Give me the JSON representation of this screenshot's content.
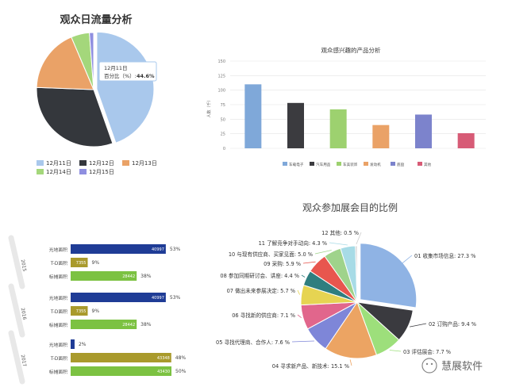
{
  "chart_data": [
    {
      "type": "pie",
      "title": "观众日流量分析",
      "categories": [
        "12月11日",
        "12月12日",
        "12月13日",
        "12月14日",
        "12月15日"
      ],
      "values": [
        44.6,
        31.0,
        18.0,
        5.2,
        1.2
      ],
      "colors": [
        "#a9c8ec",
        "#34373c",
        "#eaa267",
        "#a4d77b",
        "#8f8fe0"
      ],
      "tooltip": {
        "date": "12月11日",
        "label": "百分比（%）:",
        "value": "44.6%"
      },
      "legend": "bottom"
    },
    {
      "type": "bar",
      "title": "观众感兴趣的产品分析",
      "categories": [
        "车载电子",
        "汽车用品",
        "车美装饰",
        "发动机",
        "底盘",
        "其他"
      ],
      "values": [
        110,
        78,
        67,
        40,
        58,
        26
      ],
      "colors": [
        "#7fa8d9",
        "#3b3b3f",
        "#9dd16f",
        "#eaa267",
        "#7c83cc",
        "#d75b76"
      ],
      "ylabel": "人数（千）",
      "ylim": [
        0,
        150
      ],
      "yticks": [
        "0",
        "25",
        "50",
        "75",
        "100",
        "125",
        "150"
      ],
      "legend": "bottom"
    },
    {
      "type": "bar",
      "orientation": "horizontal",
      "groups": [
        {
          "year": "2015",
          "rows": [
            {
              "label": "光地面积",
              "value": 40997,
              "value_text": "40997",
              "pct_text": "53%",
              "color": "#1f3c96"
            },
            {
              "label": "T-D面积",
              "value": 7355,
              "value_text": "7355",
              "pct_text": "9%",
              "color": "#a99a2c"
            },
            {
              "label": "标摊面积",
              "value": 28442,
              "value_text": "28442",
              "pct_text": "38%",
              "color": "#7cc242"
            }
          ]
        },
        {
          "year": "2016",
          "rows": [
            {
              "label": "光地面积",
              "value": 40997,
              "value_text": "40997",
              "pct_text": "53%",
              "color": "#1f3c96"
            },
            {
              "label": "T-D面积",
              "value": 7355,
              "value_text": "7355",
              "pct_text": "9%",
              "color": "#a99a2c"
            },
            {
              "label": "标摊面积",
              "value": 28442,
              "value_text": "28442",
              "pct_text": "38%",
              "color": "#7cc242"
            }
          ]
        },
        {
          "year": "2017",
          "rows": [
            {
              "label": "光地面积",
              "value": 1700,
              "value_text": "",
              "pct_text": "2%",
              "color": "#1f3c96"
            },
            {
              "label": "T-D面积",
              "value": 43348,
              "value_text": "43348",
              "pct_text": "48%",
              "color": "#a99a2c"
            },
            {
              "label": "标摊面积",
              "value": 43430,
              "value_text": "43430",
              "pct_text": "50%",
              "color": "#7cc242"
            }
          ]
        }
      ]
    },
    {
      "type": "pie",
      "title": "观众参加展会目的比例",
      "slices": [
        {
          "label": "01 收集市场信息: 27.3 %",
          "value": 27.3,
          "color": "#8fb3e4"
        },
        {
          "label": "02 订购产品: 9.4 %",
          "value": 9.4,
          "color": "#3a3a3f"
        },
        {
          "label": "03 评估展会: 7.7 %",
          "value": 7.7,
          "color": "#9ddf7b"
        },
        {
          "label": "04 寻求新产品、新技术: 15.1 %",
          "value": 15.1,
          "color": "#eca463"
        },
        {
          "label": "05 寻找代理商、合作人: 7.6 %",
          "value": 7.6,
          "color": "#7e86d8"
        },
        {
          "label": "06 寻找新的供应商: 7.1 %",
          "value": 7.1,
          "color": "#e1668c"
        },
        {
          "label": "07 做出未来参展决定: 5.7 %",
          "value": 5.7,
          "color": "#e6d452"
        },
        {
          "label": "08 参加同期研讨会、讲座: 4.4 %",
          "value": 4.4,
          "color": "#2f7e7f"
        },
        {
          "label": "09 采购: 5.9 %",
          "value": 5.9,
          "color": "#e8564e"
        },
        {
          "label": "10 与现有供应商、买家见面: 5.0 %",
          "value": 5.0,
          "color": "#9fd38b"
        },
        {
          "label": "11 了解竞争对手动向: 4.3 %",
          "value": 4.3,
          "color": "#a7dbe6"
        },
        {
          "label": "12 其他: 0.5 %",
          "value": 0.5,
          "color": "#cccccc"
        }
      ]
    }
  ],
  "watermark": "慧展软件"
}
